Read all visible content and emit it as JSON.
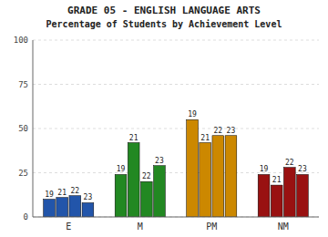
{
  "chart_data": {
    "type": "bar",
    "title": "GRADE 05 - ENGLISH LANGUAGE ARTS",
    "subtitle": "Percentage of Students by Achievement Level",
    "categories": [
      "E",
      "M",
      "PM",
      "NM"
    ],
    "series": [
      {
        "name": "19",
        "colors": [
          "#2255aa",
          "#228822",
          "#cc8800",
          "#991111"
        ],
        "values": [
          10,
          24,
          55,
          24
        ]
      },
      {
        "name": "21",
        "colors": [
          "#2255aa",
          "#228822",
          "#cc8800",
          "#991111"
        ],
        "values": [
          11,
          42,
          42,
          18
        ]
      },
      {
        "name": "22",
        "colors": [
          "#2255aa",
          "#228822",
          "#cc8800",
          "#991111"
        ],
        "values": [
          12,
          20,
          46,
          28
        ]
      },
      {
        "name": "23",
        "colors": [
          "#2255aa",
          "#228822",
          "#cc8800",
          "#991111"
        ],
        "values": [
          8,
          29,
          46,
          24
        ]
      }
    ],
    "ylim": [
      0,
      100
    ],
    "yticks": [
      0,
      25,
      50,
      75,
      100
    ],
    "grid": true
  }
}
